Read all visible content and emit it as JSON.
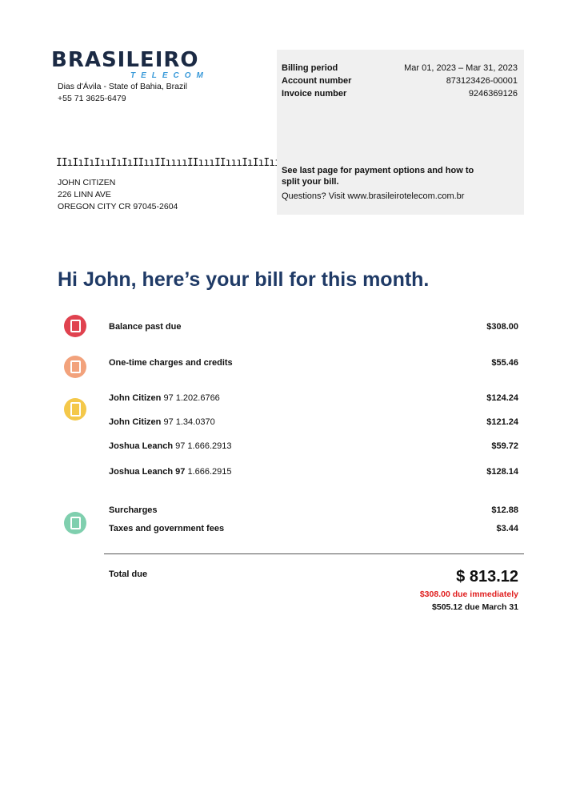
{
  "company": {
    "name": "BRASILEIRO",
    "sub": "TELECOM",
    "address": "Dias d'Ávila - State of Bahia, Brazil",
    "phone": "+55 71 3625-6479"
  },
  "customer": {
    "barcode": "IIıIıIıIııIıIıIIııIIııııIIıııIIıııIıIıIııIIıI",
    "name": "JOHN CITIZEN",
    "street": "226 LINN AVE",
    "city": "OREGON CITY CR 97045-2604"
  },
  "info": {
    "billing_period_label": "Billing period",
    "billing_period": "Mar 01, 2023 – Mar 31, 2023",
    "account_label": "Account number",
    "account": "873123426-00001",
    "invoice_label": "Invoice number",
    "invoice": "9246369126",
    "note": "See last page for payment options and how to split your bill.",
    "questions": "Questions? Visit www.brasileirotelecom.com.br"
  },
  "title": "Hi John, here’s your bill for this month.",
  "icon_colors": {
    "past_due": "#e0424f",
    "one_time": "#f2a27c",
    "lines": "#f4c84a",
    "fees": "#7fcfae"
  },
  "items": [
    {
      "label": "Balance past due",
      "number": "",
      "amount": "$308.00"
    },
    {
      "label": "One-time charges and credits",
      "number": "",
      "amount": "$55.46"
    },
    {
      "label": "John Citizen",
      "number": "97 1.202.6766",
      "amount": "$124.24"
    },
    {
      "label": "John Citizen",
      "number": "97 1.34.0370",
      "amount": "$121.24"
    },
    {
      "label": "Joshua Leanch",
      "number": "97 1.666.2913",
      "amount": "$59.72"
    },
    {
      "label": "Joshua Leanch 97",
      "number": "1.666.2915",
      "amount": "$128.14"
    },
    {
      "label": "Surcharges",
      "number": "",
      "amount": "$12.88"
    },
    {
      "label": "Taxes and government fees",
      "number": "",
      "amount": "$3.44"
    }
  ],
  "total": {
    "label": "Total due",
    "amount": "$ 813.12",
    "immediate": "$308.00 due immediately",
    "later": "$505.12 due March 31"
  }
}
